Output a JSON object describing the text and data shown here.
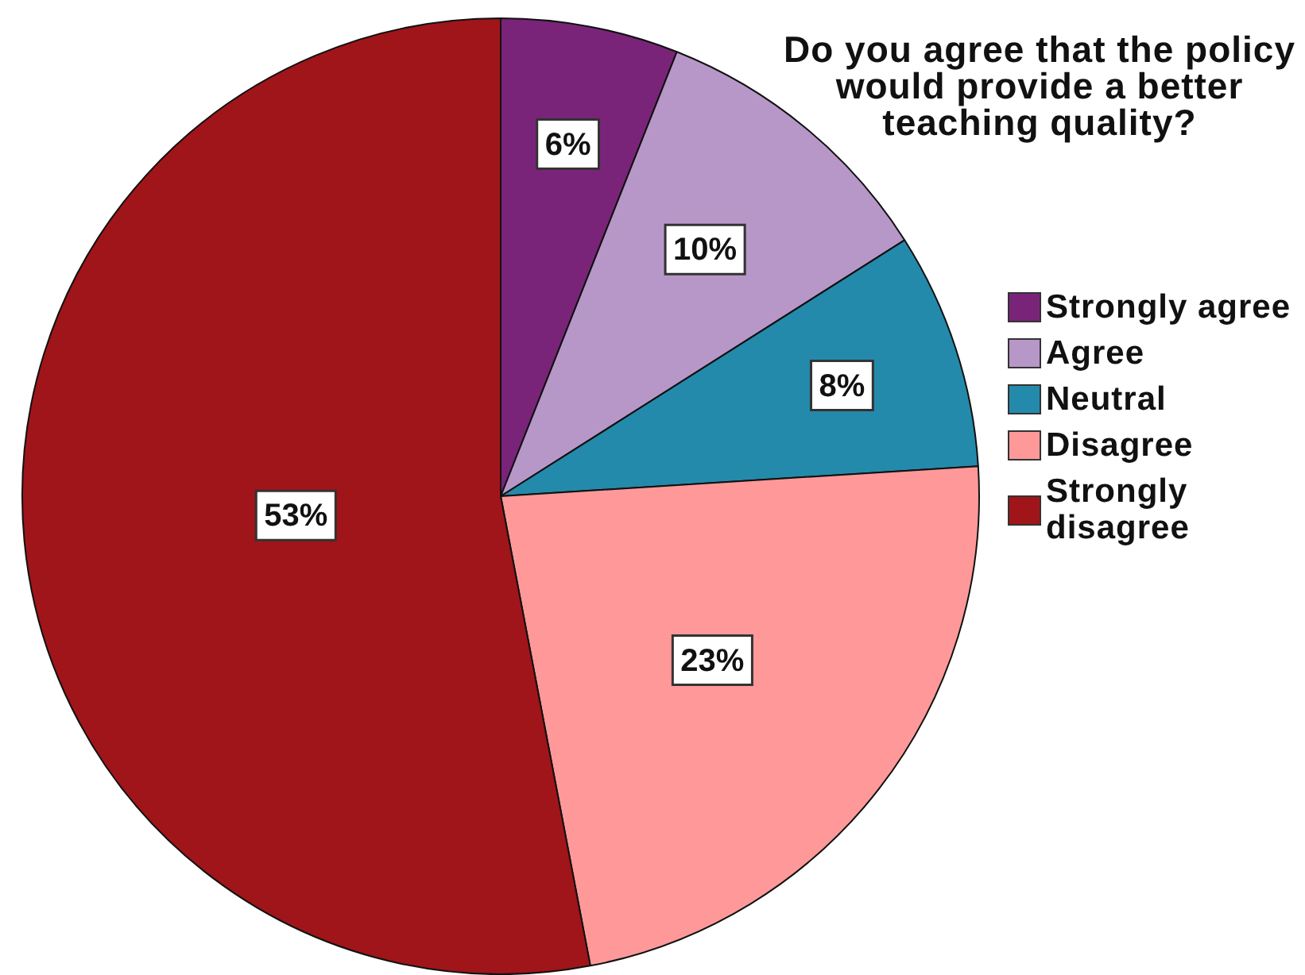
{
  "chart_data": {
    "type": "pie",
    "title": "Do you agree that the policy would provide a better teaching quality?",
    "categories": [
      "Strongly agree",
      "Agree",
      "Neutral",
      "Disagree",
      "Strongly disagree"
    ],
    "values": [
      6,
      10,
      8,
      23,
      53
    ],
    "colors": [
      "#7a2479",
      "#b797c8",
      "#248aab",
      "#ff9999",
      "#a0151a"
    ],
    "value_labels": [
      "6%",
      "10%",
      "8%",
      "23%",
      "53%"
    ],
    "legend": "right"
  }
}
